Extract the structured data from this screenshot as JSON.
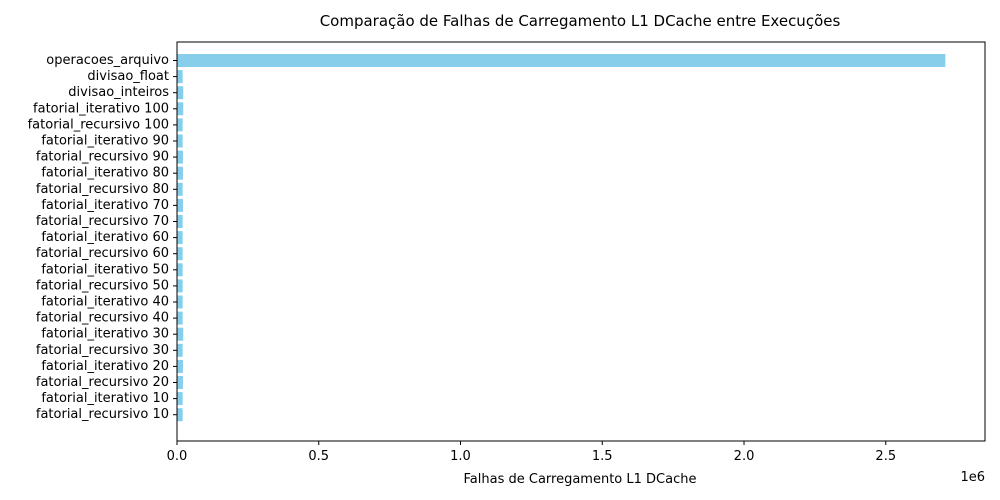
{
  "chart_data": {
    "type": "bar",
    "orientation": "horizontal",
    "title": "Comparação de Falhas de Carregamento L1 DCache entre Execuções",
    "xlabel": "Falhas de Carregamento L1 DCache",
    "ylabel": "",
    "x_offset_label": "1e6",
    "xlim": [
      0,
      2850000
    ],
    "xticks": [
      0,
      500000,
      1000000,
      1500000,
      2000000,
      2500000
    ],
    "xtick_labels": [
      "0.0",
      "0.5",
      "1.0",
      "1.5",
      "2.0",
      "2.5"
    ],
    "bar_color": "#87CEEB",
    "grid": false,
    "categories": [
      "operacoes_arquivo",
      "divisao_float",
      "divisao_inteiros",
      "fatorial_iterativo 100",
      "fatorial_recursivo 100",
      "fatorial_iterativo 90",
      "fatorial_recursivo 90",
      "fatorial_iterativo 80",
      "fatorial_recursivo 80",
      "fatorial_iterativo 70",
      "fatorial_recursivo 70",
      "fatorial_iterativo 60",
      "fatorial_recursivo 60",
      "fatorial_iterativo 50",
      "fatorial_recursivo 50",
      "fatorial_iterativo 40",
      "fatorial_recursivo 40",
      "fatorial_iterativo 30",
      "fatorial_recursivo 30",
      "fatorial_iterativo 20",
      "fatorial_recursivo 20",
      "fatorial_iterativo 10",
      "fatorial_recursivo 10"
    ],
    "values": [
      2710000,
      20000,
      22000,
      22000,
      20000,
      20000,
      21000,
      21000,
      20000,
      21000,
      20000,
      20000,
      20000,
      20000,
      20000,
      20000,
      20000,
      22000,
      20000,
      21000,
      21000,
      20000,
      20000
    ]
  }
}
